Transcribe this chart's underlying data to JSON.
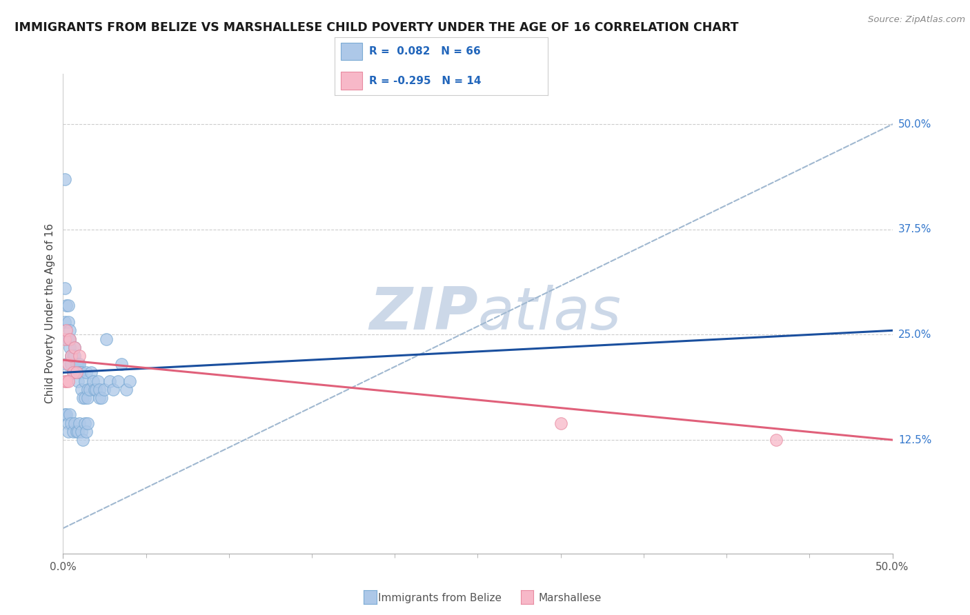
{
  "title": "IMMIGRANTS FROM BELIZE VS MARSHALLESE CHILD POVERTY UNDER THE AGE OF 16 CORRELATION CHART",
  "source": "Source: ZipAtlas.com",
  "ylabel": "Child Poverty Under the Age of 16",
  "right_yticks": [
    "50.0%",
    "37.5%",
    "25.0%",
    "12.5%"
  ],
  "right_ytick_vals": [
    0.5,
    0.375,
    0.25,
    0.125
  ],
  "xlim": [
    0.0,
    0.5
  ],
  "ylim": [
    -0.01,
    0.56
  ],
  "belize_color": "#adc8e8",
  "belize_edge_color": "#7aaad4",
  "belize_line_color": "#1a4f9e",
  "marsh_color": "#f7b8c8",
  "marsh_edge_color": "#e88aa0",
  "marsh_line_color": "#e0607a",
  "dashed_line_color": "#a0b8d0",
  "watermark_zip": "ZIP",
  "watermark_atlas": "atlas",
  "watermark_color": "#ccd8e8",
  "belize_scatter_x": [
    0.001,
    0.001,
    0.001,
    0.002,
    0.002,
    0.002,
    0.003,
    0.003,
    0.003,
    0.004,
    0.004,
    0.004,
    0.005,
    0.005,
    0.006,
    0.006,
    0.007,
    0.007,
    0.007,
    0.008,
    0.008,
    0.009,
    0.009,
    0.01,
    0.01,
    0.011,
    0.011,
    0.012,
    0.013,
    0.013,
    0.014,
    0.015,
    0.015,
    0.016,
    0.017,
    0.018,
    0.019,
    0.02,
    0.021,
    0.022,
    0.022,
    0.023,
    0.025,
    0.026,
    0.028,
    0.03,
    0.033,
    0.035,
    0.038,
    0.04,
    0.001,
    0.002,
    0.003,
    0.003,
    0.004,
    0.005,
    0.006,
    0.007,
    0.008,
    0.009,
    0.01,
    0.011,
    0.012,
    0.013,
    0.014,
    0.015
  ],
  "belize_scatter_y": [
    0.435,
    0.305,
    0.265,
    0.285,
    0.245,
    0.215,
    0.285,
    0.265,
    0.245,
    0.255,
    0.245,
    0.235,
    0.225,
    0.215,
    0.225,
    0.205,
    0.235,
    0.225,
    0.205,
    0.215,
    0.215,
    0.215,
    0.195,
    0.215,
    0.205,
    0.185,
    0.205,
    0.175,
    0.195,
    0.175,
    0.205,
    0.185,
    0.175,
    0.185,
    0.205,
    0.195,
    0.185,
    0.185,
    0.195,
    0.175,
    0.185,
    0.175,
    0.185,
    0.245,
    0.195,
    0.185,
    0.195,
    0.215,
    0.185,
    0.195,
    0.155,
    0.155,
    0.145,
    0.135,
    0.155,
    0.145,
    0.135,
    0.145,
    0.135,
    0.135,
    0.145,
    0.135,
    0.125,
    0.145,
    0.135,
    0.145
  ],
  "marsh_scatter_x": [
    0.001,
    0.002,
    0.003,
    0.004,
    0.005,
    0.006,
    0.007,
    0.008,
    0.01,
    0.001,
    0.002,
    0.003,
    0.3,
    0.43
  ],
  "marsh_scatter_y": [
    0.245,
    0.255,
    0.215,
    0.245,
    0.225,
    0.205,
    0.235,
    0.205,
    0.225,
    0.195,
    0.195,
    0.195,
    0.145,
    0.125
  ],
  "belize_trend_x": [
    0.0,
    0.5
  ],
  "belize_trend_y": [
    0.205,
    0.255
  ],
  "marsh_trend_x": [
    0.0,
    0.5
  ],
  "marsh_trend_y": [
    0.22,
    0.125
  ],
  "dashed_trend_x": [
    0.0,
    0.5
  ],
  "dashed_trend_y": [
    0.02,
    0.5
  ],
  "xtick_minor_positions": [
    0.05,
    0.1,
    0.15,
    0.2,
    0.25,
    0.3,
    0.35,
    0.4,
    0.45
  ]
}
